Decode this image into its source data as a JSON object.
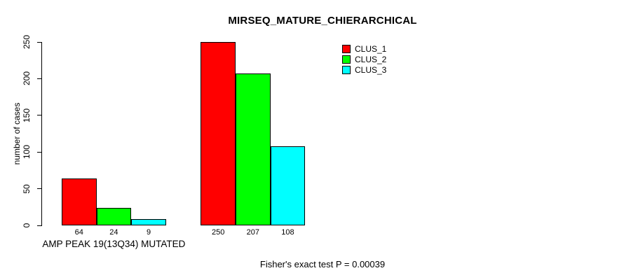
{
  "chart_data": {
    "type": "bar",
    "title": "MIRSEQ_MATURE_CHIERARCHICAL",
    "xlabel": "",
    "ylabel": "number of cases",
    "ylim": [
      0,
      250
    ],
    "yticks": [
      0,
      50,
      100,
      150,
      200,
      250
    ],
    "grid": false,
    "legend_position": "top-right",
    "legend": [
      {
        "name": "CLUS_1",
        "color": "#ff0000"
      },
      {
        "name": "CLUS_2",
        "color": "#00ff00"
      },
      {
        "name": "CLUS_3",
        "color": "#00ffff"
      }
    ],
    "series": [
      {
        "name": "CLUS_1",
        "values": [
          64,
          250
        ]
      },
      {
        "name": "CLUS_2",
        "values": [
          24,
          207
        ]
      },
      {
        "name": "CLUS_3",
        "values": [
          9,
          108
        ]
      }
    ],
    "groups": [
      {
        "label": "AMP PEAK 19(13Q34) MUTATED",
        "values": [
          64,
          24,
          9
        ]
      },
      {
        "label": "",
        "values": [
          250,
          207,
          108
        ]
      }
    ],
    "bar_outline_color": "#000000",
    "annotation": "Fisher's exact test P = 0.00039"
  }
}
